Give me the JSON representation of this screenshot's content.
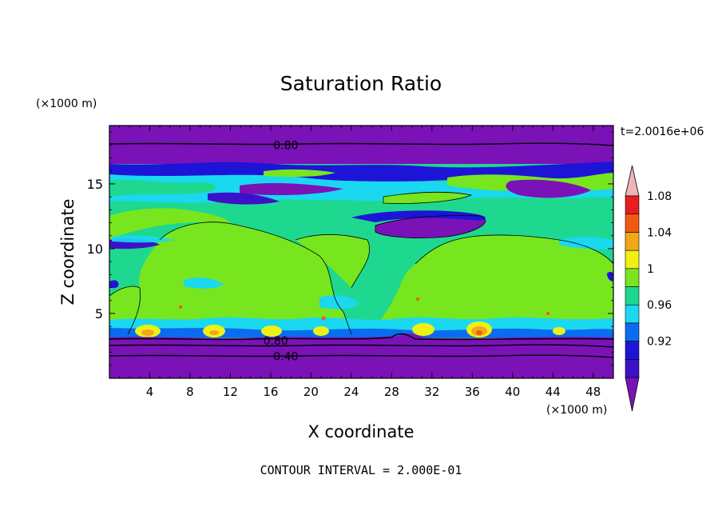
{
  "chart_data": {
    "type": "heatmap",
    "title": "Saturation Ratio",
    "xlabel": "X coordinate",
    "ylabel": "Z coordinate",
    "x_unit": "(×1000 m)",
    "y_unit": "(×1000 m)",
    "time_label": "t=2.0016e+06",
    "footer": "CONTOUR INTERVAL = 2.000E-01",
    "xlim": [
      0,
      50
    ],
    "ylim": [
      0,
      19.5
    ],
    "x_ticks": [
      4,
      8,
      12,
      16,
      20,
      24,
      28,
      32,
      36,
      40,
      44,
      48
    ],
    "y_ticks": [
      5,
      10,
      15
    ],
    "contour_labels": [
      {
        "text": "0.80",
        "x": 17.5,
        "y": 18.0
      },
      {
        "text": "0.80",
        "x": 16.5,
        "y": 2.9
      },
      {
        "text": "0.40",
        "x": 17.5,
        "y": 1.7
      }
    ],
    "colorbar": {
      "levels": [
        "",
        "0.92",
        "",
        "0.96",
        "",
        "1",
        "",
        "1.04",
        "",
        "1.08",
        ""
      ],
      "colors": [
        "#7a12b8",
        "#3c12c8",
        "#1e14d8",
        "#0a6cf0",
        "#1ad8f0",
        "#1ed890",
        "#78e61e",
        "#f0f014",
        "#f0a814",
        "#f05a14",
        "#e61e1e",
        "#f0b4b4"
      ]
    }
  }
}
